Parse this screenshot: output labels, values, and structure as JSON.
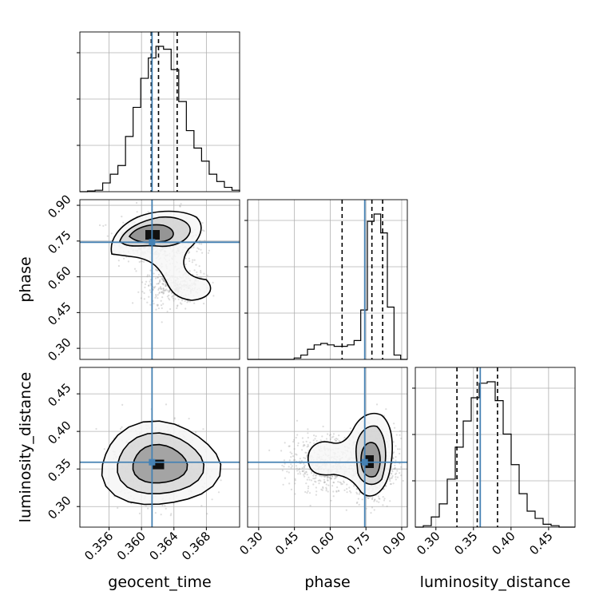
{
  "chart_data": {
    "type": "corner",
    "parameters": [
      "geocent_time",
      "phase",
      "luminosity_distance"
    ],
    "grid": true,
    "colors": {
      "truth": "#4682b4",
      "hist": "#000000",
      "points": "#9e9e9e"
    },
    "truths": {
      "geocent_time": 0.3613,
      "phase": 0.745,
      "luminosity_distance": 0.359
    },
    "quantiles": {
      "geocent_time": [
        0.3612,
        0.3621,
        0.3644
      ],
      "phase": [
        0.65,
        0.775,
        0.82
      ],
      "luminosity_distance": [
        0.328,
        0.355,
        0.382
      ]
    },
    "ranges": {
      "geocent_time": [
        0.3524,
        0.3721
      ],
      "phase": [
        0.2535,
        0.9236
      ],
      "luminosity_distance": [
        0.2726,
        0.4852
      ]
    },
    "ticks": {
      "geocent_time": {
        "values": [
          0.356,
          0.36,
          0.364,
          0.368
        ],
        "labels": [
          "0.356",
          "0.360",
          "0.364",
          "0.368"
        ]
      },
      "phase": {
        "values": [
          0.3,
          0.45,
          0.6,
          0.75,
          0.9
        ],
        "labels": [
          "0.30",
          "0.45",
          "0.60",
          "0.75",
          "0.90"
        ]
      },
      "luminosity_distance": {
        "values": [
          0.3,
          0.35,
          0.4,
          0.45
        ],
        "labels": [
          "0.30",
          "0.35",
          "0.40",
          "0.45"
        ]
      }
    },
    "histograms": {
      "geocent_time": [
        0.0,
        0.005,
        0.01,
        0.06,
        0.12,
        0.18,
        0.38,
        0.58,
        0.78,
        0.92,
        1.0,
        0.98,
        0.84,
        0.62,
        0.42,
        0.3,
        0.21,
        0.12,
        0.07,
        0.03,
        0.01
      ],
      "phase": [
        0.0,
        0.0,
        0.0,
        0.0,
        0.0,
        0.0,
        0.0,
        0.01,
        0.03,
        0.07,
        0.1,
        0.11,
        0.1,
        0.09,
        0.09,
        0.1,
        0.13,
        0.34,
        0.95,
        1.0,
        0.87,
        0.36,
        0.03,
        0.0
      ],
      "luminosity_distance": [
        0.0,
        0.01,
        0.07,
        0.16,
        0.33,
        0.55,
        0.73,
        0.89,
        0.99,
        1.0,
        0.87,
        0.64,
        0.43,
        0.23,
        0.11,
        0.06,
        0.02,
        0.01,
        0.0,
        0.0
      ]
    }
  }
}
